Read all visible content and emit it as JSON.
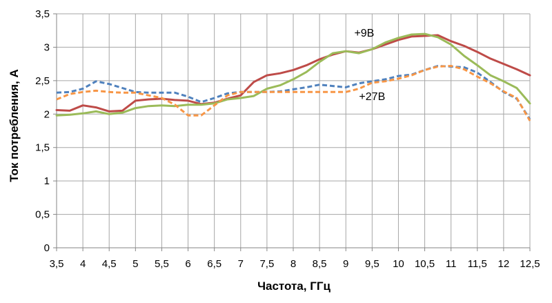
{
  "chart_data": {
    "type": "line",
    "title": "",
    "xlabel": "Частота, ГГц",
    "ylabel": "Ток потребления, А",
    "xlim": [
      3.5,
      12.5
    ],
    "ylim": [
      0,
      3.5
    ],
    "xticks": [
      3.5,
      4,
      4.5,
      5,
      5.5,
      6,
      6.5,
      7,
      7.5,
      8,
      8.5,
      9,
      9.5,
      10,
      10.5,
      11,
      11.5,
      12,
      12.5
    ],
    "xtick_labels": [
      "3,5",
      "4",
      "4,5",
      "5",
      "5,5",
      "6",
      "6,5",
      "7",
      "7,5",
      "8",
      "8,5",
      "9",
      "9,5",
      "10",
      "10,5",
      "11",
      "11,5",
      "12",
      "12,5"
    ],
    "yticks": [
      0,
      0.5,
      1,
      1.5,
      2,
      2.5,
      3,
      3.5
    ],
    "ytick_labels": [
      "0",
      "0,5",
      "1",
      "1,5",
      "2",
      "2,5",
      "3",
      "3,5"
    ],
    "grid": true,
    "legend": "none",
    "annotations": [
      {
        "text": "+9В",
        "x": 9.35,
        "y": 3.22
      },
      {
        "text": "+27В",
        "x": 9.5,
        "y": 2.27
      }
    ],
    "series": [
      {
        "color": "#be4b48",
        "dash": false,
        "x": [
          3.5,
          3.75,
          4,
          4.25,
          4.5,
          4.75,
          5,
          5.25,
          5.5,
          5.75,
          6,
          6.25,
          6.5,
          6.75,
          7,
          7.25,
          7.5,
          7.75,
          8,
          8.25,
          8.5,
          8.75,
          9,
          9.25,
          9.5,
          9.75,
          10,
          10.25,
          10.5,
          10.75,
          11,
          11.25,
          11.5,
          11.75,
          12,
          12.25,
          12.5
        ],
        "y": [
          2.06,
          2.05,
          2.13,
          2.1,
          2.04,
          2.05,
          2.2,
          2.22,
          2.23,
          2.21,
          2.2,
          2.15,
          2.17,
          2.23,
          2.28,
          2.48,
          2.58,
          2.61,
          2.66,
          2.73,
          2.82,
          2.89,
          2.94,
          2.92,
          2.97,
          3.04,
          3.11,
          3.16,
          3.17,
          3.18,
          3.09,
          3.02,
          2.93,
          2.83,
          2.75,
          2.67,
          2.58
        ]
      },
      {
        "color": "#9bbb59",
        "dash": false,
        "x": [
          3.5,
          3.75,
          4,
          4.25,
          4.5,
          4.75,
          5,
          5.25,
          5.5,
          5.75,
          6,
          6.25,
          6.5,
          6.75,
          7,
          7.25,
          7.5,
          7.75,
          8,
          8.25,
          8.5,
          8.75,
          9,
          9.25,
          9.5,
          9.75,
          10,
          10.25,
          10.5,
          10.75,
          11,
          11.25,
          11.5,
          11.75,
          12,
          12.25,
          12.5
        ],
        "y": [
          1.98,
          1.99,
          2.01,
          2.04,
          2.0,
          2.02,
          2.09,
          2.12,
          2.13,
          2.12,
          2.14,
          2.14,
          2.16,
          2.22,
          2.24,
          2.27,
          2.38,
          2.43,
          2.52,
          2.63,
          2.78,
          2.91,
          2.94,
          2.91,
          2.97,
          3.07,
          3.14,
          3.19,
          3.2,
          3.15,
          3.04,
          2.87,
          2.73,
          2.58,
          2.49,
          2.39,
          2.16
        ]
      },
      {
        "color": "#4f81bd",
        "dash": true,
        "x": [
          3.5,
          3.75,
          4,
          4.25,
          4.5,
          4.75,
          5,
          5.25,
          5.5,
          5.75,
          6,
          6.25,
          6.5,
          6.75,
          7,
          7.25,
          7.5,
          7.75,
          8,
          8.25,
          8.5,
          8.75,
          9,
          9.25,
          9.5,
          9.75,
          10,
          10.25,
          10.5,
          10.75,
          11,
          11.25,
          11.5,
          11.75,
          12,
          12.25,
          12.5
        ],
        "y": [
          2.32,
          2.33,
          2.38,
          2.49,
          2.45,
          2.39,
          2.33,
          2.32,
          2.32,
          2.32,
          2.26,
          2.18,
          2.24,
          2.31,
          2.33,
          2.33,
          2.33,
          2.34,
          2.37,
          2.4,
          2.44,
          2.42,
          2.4,
          2.46,
          2.49,
          2.52,
          2.57,
          2.59,
          2.66,
          2.72,
          2.71,
          2.7,
          2.62,
          2.48,
          2.33,
          2.23,
          1.92
        ]
      },
      {
        "color": "#f79646",
        "dash": true,
        "x": [
          3.5,
          3.75,
          4,
          4.25,
          4.5,
          4.75,
          5,
          5.25,
          5.5,
          5.75,
          6,
          6.25,
          6.5,
          6.75,
          7,
          7.25,
          7.5,
          7.75,
          8,
          8.25,
          8.5,
          8.75,
          9,
          9.25,
          9.5,
          9.75,
          10,
          10.25,
          10.5,
          10.75,
          11,
          11.25,
          11.5,
          11.75,
          12,
          12.25,
          12.5
        ],
        "y": [
          2.22,
          2.3,
          2.33,
          2.35,
          2.33,
          2.32,
          2.32,
          2.28,
          2.24,
          2.14,
          1.98,
          1.98,
          2.13,
          2.28,
          2.33,
          2.33,
          2.33,
          2.33,
          2.33,
          2.33,
          2.33,
          2.33,
          2.33,
          2.38,
          2.47,
          2.49,
          2.53,
          2.58,
          2.66,
          2.71,
          2.72,
          2.67,
          2.56,
          2.46,
          2.34,
          2.24,
          1.9
        ]
      }
    ]
  }
}
